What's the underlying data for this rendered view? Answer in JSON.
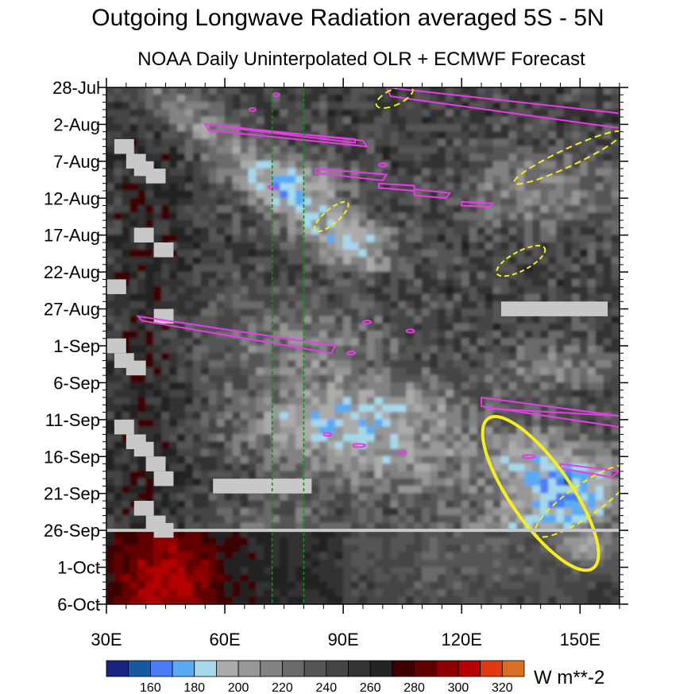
{
  "chart_data": {
    "type": "heatmap",
    "title": "Outgoing Longwave Radiation averaged 5S - 5N",
    "subtitle": "NOAA Daily Uninterpolated OLR + ECMWF Forecast",
    "x_axis": {
      "quantity": "longitude",
      "range": [
        "30E",
        "160E"
      ],
      "range_deg": [
        30,
        160
      ],
      "tick_labels": [
        "30E",
        "60E",
        "90E",
        "120E",
        "150E"
      ],
      "tick_values": [
        30,
        60,
        90,
        120,
        150
      ]
    },
    "y_axis": {
      "quantity": "date",
      "direction": "time increases downward",
      "range": [
        "28-Jul",
        "6-Oct"
      ],
      "tick_labels": [
        "28-Jul",
        "2-Aug",
        "7-Aug",
        "12-Aug",
        "17-Aug",
        "22-Aug",
        "27-Aug",
        "1-Sep",
        "6-Sep",
        "11-Sep",
        "16-Sep",
        "21-Sep",
        "26-Sep",
        "1-Oct",
        "6-Oct"
      ]
    },
    "colorbar": {
      "units": "W m**-2",
      "levels": [
        150,
        160,
        170,
        180,
        190,
        200,
        210,
        220,
        230,
        240,
        250,
        260,
        270,
        280,
        290,
        300,
        310,
        320,
        330
      ],
      "tick_labels": [
        "160",
        "180",
        "200",
        "220",
        "240",
        "260",
        "280",
        "300",
        "320"
      ],
      "colors": [
        "#1a237e",
        "#155a9e",
        "#4a7dfa",
        "#5aaaf5",
        "#a6d8ec",
        "#ababab",
        "#979797",
        "#828282",
        "#6a6a6a",
        "#555555",
        "#444444",
        "#333333",
        "#242424",
        "#3e0000",
        "#620000",
        "#8e0000",
        "#b40000",
        "#e23a10",
        "#d96f22"
      ],
      "orientation": "horizontal",
      "placement": "bottom"
    },
    "reference_lines": {
      "longitudes_deg": [
        72,
        80
      ],
      "style": "dashed",
      "color": "#1a8a1a"
    },
    "observation_forecast_boundary": "26-Sep",
    "overlay_colors": {
      "observed_contours": "#e83ce8",
      "forecast_contours": "#f5ef1e",
      "missing_data": "#c8c8c8"
    }
  }
}
